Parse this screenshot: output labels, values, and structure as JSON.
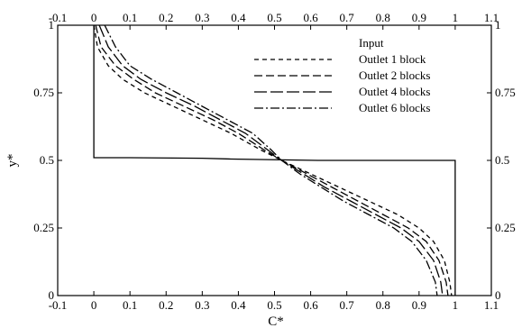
{
  "chart_data": {
    "type": "line",
    "xlabel": "C*",
    "ylabel": "y*",
    "xlim": [
      -0.1,
      1.1
    ],
    "ylim": [
      0,
      1
    ],
    "x_ticks": [
      "-0.1",
      "0",
      "0.1",
      "0.2",
      "0.3",
      "0.4",
      "0.5",
      "0.6",
      "0.7",
      "0.8",
      "0.9",
      "1",
      "1.1"
    ],
    "y_ticks": [
      "0",
      "0.25",
      "0.5",
      "0.75",
      "1"
    ],
    "y_ticks_right": [
      "0",
      "0.25",
      "0.5",
      "0.75",
      "1"
    ],
    "grid": false,
    "legend_position": "top-right",
    "series": [
      {
        "name": "Input",
        "style": "solid",
        "points": [
          [
            0,
            1
          ],
          [
            0,
            0.51
          ],
          [
            0.1,
            0.51
          ],
          [
            0.3,
            0.508
          ],
          [
            0.38,
            0.505
          ],
          [
            0.62,
            0.5
          ],
          [
            0.6,
            0.5
          ],
          [
            0.86,
            0.5
          ],
          [
            1,
            0.5
          ],
          [
            1,
            0
          ]
        ]
      },
      {
        "name": "Outlet 1 block",
        "style": "short-dash",
        "points": [
          [
            0,
            1
          ],
          [
            0.01,
            0.92
          ],
          [
            0.04,
            0.85
          ],
          [
            0.08,
            0.8
          ],
          [
            0.14,
            0.75
          ],
          [
            0.22,
            0.7
          ],
          [
            0.3,
            0.65
          ],
          [
            0.38,
            0.6
          ],
          [
            0.46,
            0.54
          ],
          [
            0.52,
            0.5
          ],
          [
            0.6,
            0.45
          ],
          [
            0.68,
            0.4
          ],
          [
            0.76,
            0.35
          ],
          [
            0.84,
            0.3
          ],
          [
            0.9,
            0.25
          ],
          [
            0.94,
            0.2
          ],
          [
            0.97,
            0.13
          ],
          [
            0.985,
            0.05
          ],
          [
            0.99,
            0
          ]
        ]
      },
      {
        "name": "Outlet 2 blocks",
        "style": "dash",
        "points": [
          [
            0.005,
            1
          ],
          [
            0.02,
            0.92
          ],
          [
            0.06,
            0.85
          ],
          [
            0.11,
            0.8
          ],
          [
            0.17,
            0.75
          ],
          [
            0.25,
            0.7
          ],
          [
            0.33,
            0.65
          ],
          [
            0.4,
            0.6
          ],
          [
            0.47,
            0.54
          ],
          [
            0.52,
            0.5
          ],
          [
            0.59,
            0.45
          ],
          [
            0.66,
            0.4
          ],
          [
            0.73,
            0.35
          ],
          [
            0.8,
            0.3
          ],
          [
            0.87,
            0.25
          ],
          [
            0.92,
            0.2
          ],
          [
            0.955,
            0.13
          ],
          [
            0.975,
            0.05
          ],
          [
            0.98,
            0
          ]
        ]
      },
      {
        "name": "Outlet 4 blocks",
        "style": "long-dash",
        "points": [
          [
            0.015,
            1
          ],
          [
            0.04,
            0.92
          ],
          [
            0.08,
            0.85
          ],
          [
            0.13,
            0.8
          ],
          [
            0.2,
            0.75
          ],
          [
            0.28,
            0.7
          ],
          [
            0.35,
            0.65
          ],
          [
            0.42,
            0.6
          ],
          [
            0.48,
            0.54
          ],
          [
            0.52,
            0.5
          ],
          [
            0.58,
            0.45
          ],
          [
            0.64,
            0.4
          ],
          [
            0.71,
            0.35
          ],
          [
            0.78,
            0.3
          ],
          [
            0.85,
            0.25
          ],
          [
            0.9,
            0.2
          ],
          [
            0.94,
            0.13
          ],
          [
            0.96,
            0.05
          ],
          [
            0.965,
            0
          ]
        ]
      },
      {
        "name": "Outlet 6 blocks",
        "style": "dash-dot",
        "points": [
          [
            0.03,
            1
          ],
          [
            0.06,
            0.92
          ],
          [
            0.1,
            0.85
          ],
          [
            0.16,
            0.8
          ],
          [
            0.23,
            0.75
          ],
          [
            0.3,
            0.7
          ],
          [
            0.37,
            0.65
          ],
          [
            0.44,
            0.6
          ],
          [
            0.49,
            0.54
          ],
          [
            0.52,
            0.5
          ],
          [
            0.57,
            0.45
          ],
          [
            0.63,
            0.4
          ],
          [
            0.69,
            0.35
          ],
          [
            0.76,
            0.3
          ],
          [
            0.83,
            0.25
          ],
          [
            0.88,
            0.2
          ],
          [
            0.92,
            0.13
          ],
          [
            0.945,
            0.05
          ],
          [
            0.95,
            0
          ]
        ]
      }
    ]
  }
}
